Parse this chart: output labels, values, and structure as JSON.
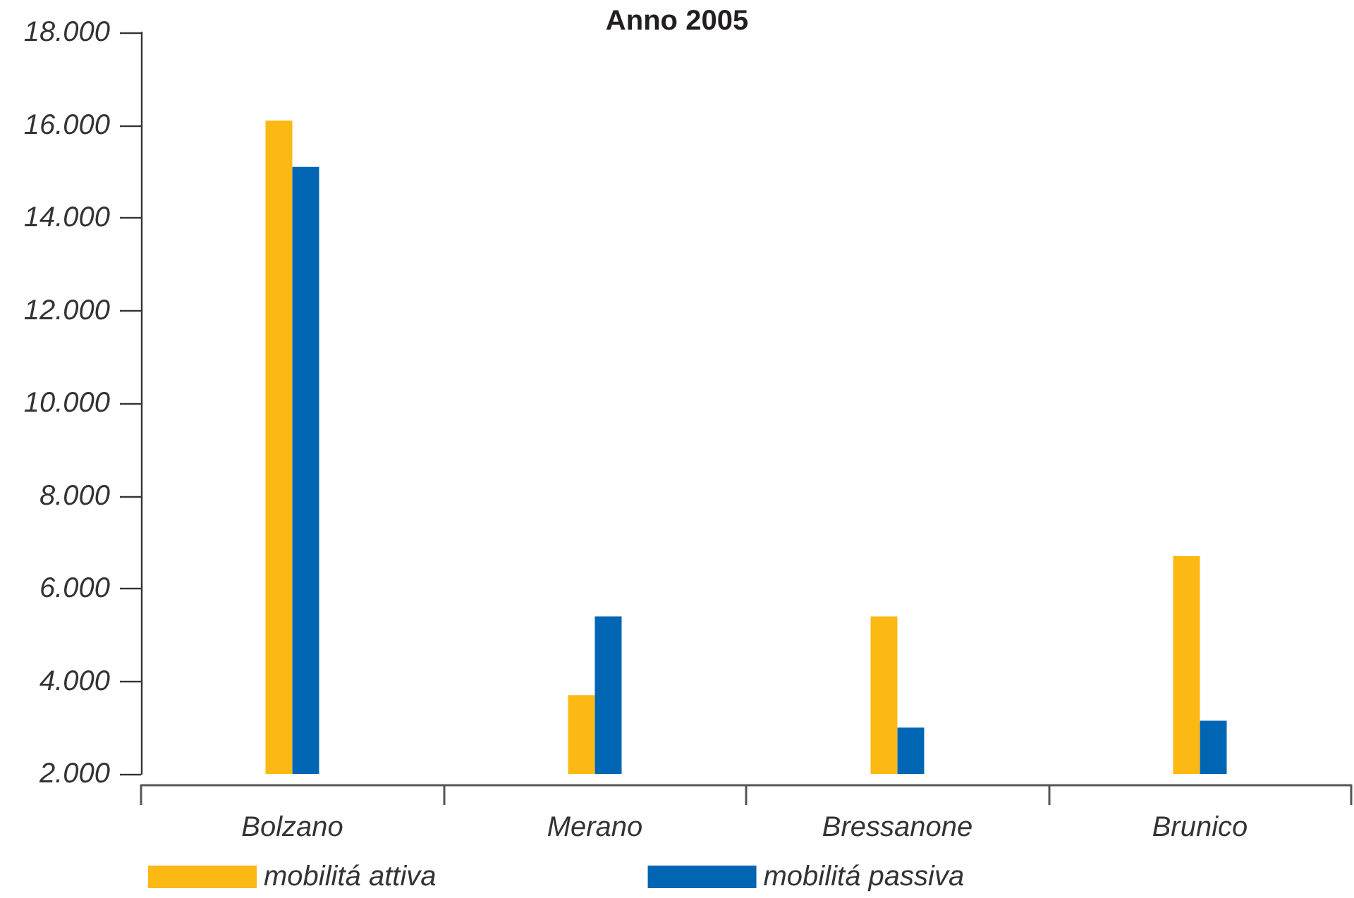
{
  "chart_data": {
    "type": "bar",
    "title": "Anno 2005",
    "categories": [
      "Bolzano",
      "Merano",
      "Bressanone",
      "Brunico"
    ],
    "series": [
      {
        "name": "mobilitá attiva",
        "color": "#fdb913",
        "values": [
          16100,
          3700,
          5400,
          6700
        ]
      },
      {
        "name": "mobilitá passiva",
        "color": "#0066b3",
        "values": [
          15100,
          5400,
          3000,
          3150
        ]
      }
    ],
    "ylim": [
      2000,
      18000
    ],
    "yticks": [
      {
        "value": 2000,
        "label": "2.000"
      },
      {
        "value": 4000,
        "label": "4.000"
      },
      {
        "value": 6000,
        "label": "6.000"
      },
      {
        "value": 8000,
        "label": "8.000"
      },
      {
        "value": 10000,
        "label": "10.000"
      },
      {
        "value": 12000,
        "label": "12.000"
      },
      {
        "value": 14000,
        "label": "14.000"
      },
      {
        "value": 16000,
        "label": "16.000"
      },
      {
        "value": 18000,
        "label": "18.000"
      }
    ],
    "grid": false,
    "legend": "bottom"
  }
}
